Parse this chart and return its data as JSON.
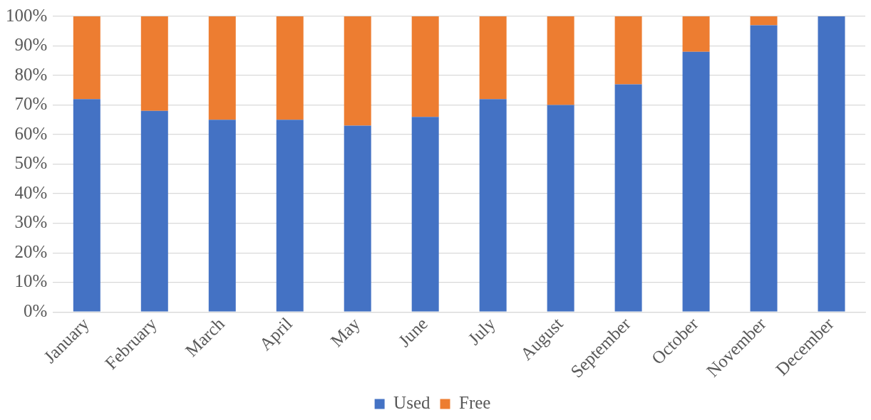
{
  "chart_data": {
    "type": "bar",
    "stacked": true,
    "categories": [
      "January",
      "February",
      "March",
      "April",
      "May",
      "June",
      "July",
      "August",
      "September",
      "October",
      "November",
      "December"
    ],
    "series": [
      {
        "name": "Used",
        "color": "#4472c4",
        "values": [
          72,
          68,
          65,
          65,
          63,
          66,
          72,
          70,
          77,
          88,
          97,
          100
        ]
      },
      {
        "name": "Free",
        "color": "#ed7d31",
        "values": [
          28,
          32,
          35,
          35,
          37,
          34,
          28,
          30,
          23,
          12,
          3,
          0
        ]
      }
    ],
    "ylim": [
      0,
      100
    ],
    "yticks": [
      {
        "value": 0,
        "label": "0%"
      },
      {
        "value": 10,
        "label": "10%"
      },
      {
        "value": 20,
        "label": "20%"
      },
      {
        "value": 30,
        "label": "30%"
      },
      {
        "value": 40,
        "label": "40%"
      },
      {
        "value": 50,
        "label": "50%"
      },
      {
        "value": 60,
        "label": "60%"
      },
      {
        "value": 70,
        "label": "70%"
      },
      {
        "value": 80,
        "label": "80%"
      },
      {
        "value": 90,
        "label": "90%"
      },
      {
        "value": 100,
        "label": "100%"
      }
    ],
    "grid": "y",
    "legend": "bottom"
  }
}
